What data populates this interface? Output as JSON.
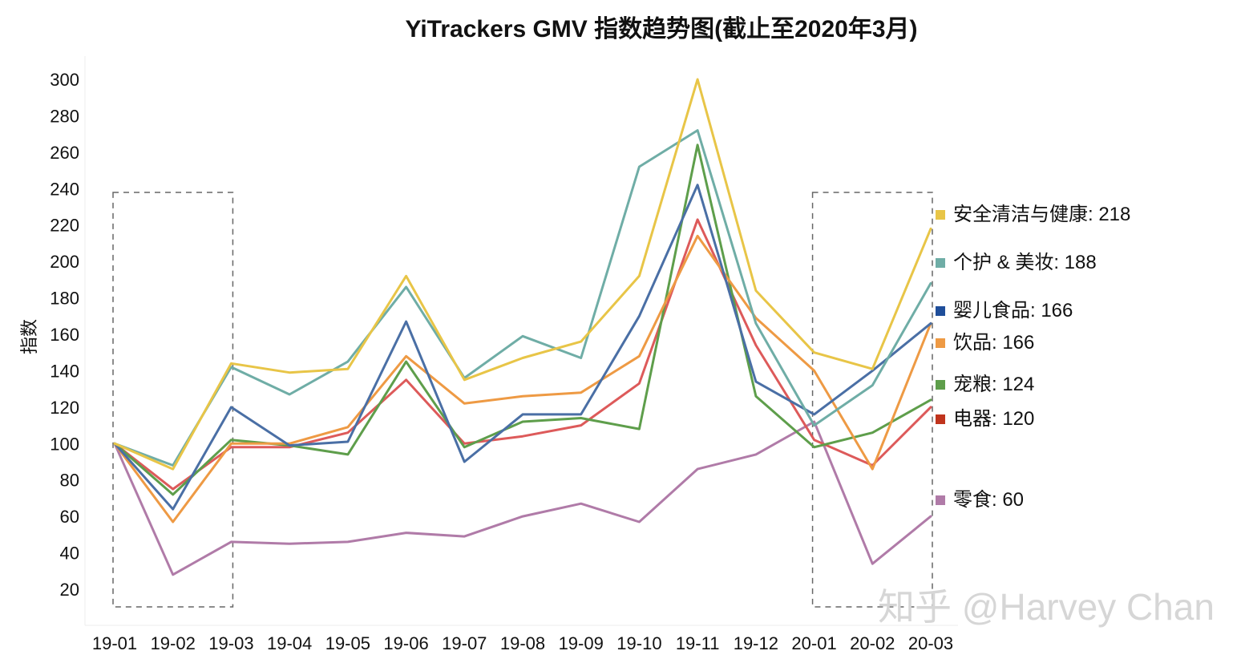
{
  "chart_data": {
    "type": "line",
    "title": "YiTrackers GMV 指数趋势图(截止至2020年3月)",
    "xlabel": "",
    "ylabel": "指数",
    "ylim": [
      10,
      310
    ],
    "yticks": [
      20,
      40,
      60,
      80,
      100,
      120,
      140,
      160,
      180,
      200,
      220,
      240,
      260,
      280,
      300
    ],
    "categories": [
      "19-01",
      "19-02",
      "19-03",
      "19-04",
      "19-05",
      "19-06",
      "19-07",
      "19-08",
      "19-09",
      "19-10",
      "19-11",
      "19-12",
      "20-01",
      "20-02",
      "20-03"
    ],
    "series": [
      {
        "name": "安全清洁与健康",
        "legend_label": "安全清洁与健康: 218",
        "color": "#e8c547",
        "values": [
          100,
          86,
          144,
          139,
          141,
          192,
          135,
          147,
          156,
          192,
          300,
          184,
          150,
          141,
          218
        ]
      },
      {
        "name": "个护 & 美妆",
        "legend_label": "个护 & 美妆: 188",
        "color": "#6fada6",
        "values": [
          100,
          88,
          142,
          127,
          145,
          186,
          136,
          159,
          147,
          252,
          272,
          166,
          110,
          132,
          188
        ]
      },
      {
        "name": "婴儿食品",
        "legend_label": "婴儿食品: 166",
        "color": "#4a6fa5",
        "values": [
          100,
          64,
          120,
          99,
          101,
          167,
          90,
          116,
          116,
          170,
          242,
          134,
          116,
          140,
          166
        ]
      },
      {
        "name": "饮品",
        "legend_label": "饮品: 166",
        "color": "#ee9a44",
        "values": [
          100,
          57,
          100,
          100,
          109,
          148,
          122,
          126,
          128,
          148,
          214,
          169,
          140,
          86,
          166
        ]
      },
      {
        "name": "宠粮",
        "legend_label": "宠粮: 124",
        "color": "#5e9e4b",
        "values": [
          100,
          72,
          102,
          99,
          94,
          145,
          98,
          112,
          114,
          108,
          264,
          126,
          98,
          106,
          124
        ]
      },
      {
        "name": "电器",
        "legend_label": "电器: 120",
        "color": "#dd5a5a",
        "values": [
          100,
          75,
          98,
          98,
          106,
          135,
          100,
          104,
          110,
          133,
          223,
          154,
          102,
          88,
          120
        ]
      },
      {
        "name": "零食",
        "legend_label": "零食: 60",
        "color": "#b07ba8",
        "values": [
          100,
          28,
          46,
          45,
          46,
          51,
          49,
          60,
          67,
          57,
          86,
          94,
          112,
          34,
          60
        ]
      }
    ],
    "legend_position": "right",
    "legend_marker_colors": [
      "#e8c547",
      "#6fada6",
      "#1f4e9a",
      "#ee9a44",
      "#5e9e4b",
      "#c0341d",
      "#b07ba8"
    ],
    "grid": false,
    "highlight_boxes": [
      {
        "from": "19-01",
        "to": "19-03",
        "style": "dashed"
      },
      {
        "from": "20-01",
        "to": "20-03",
        "style": "dashed"
      }
    ]
  },
  "watermark": "知乎 @Harvey Chan"
}
